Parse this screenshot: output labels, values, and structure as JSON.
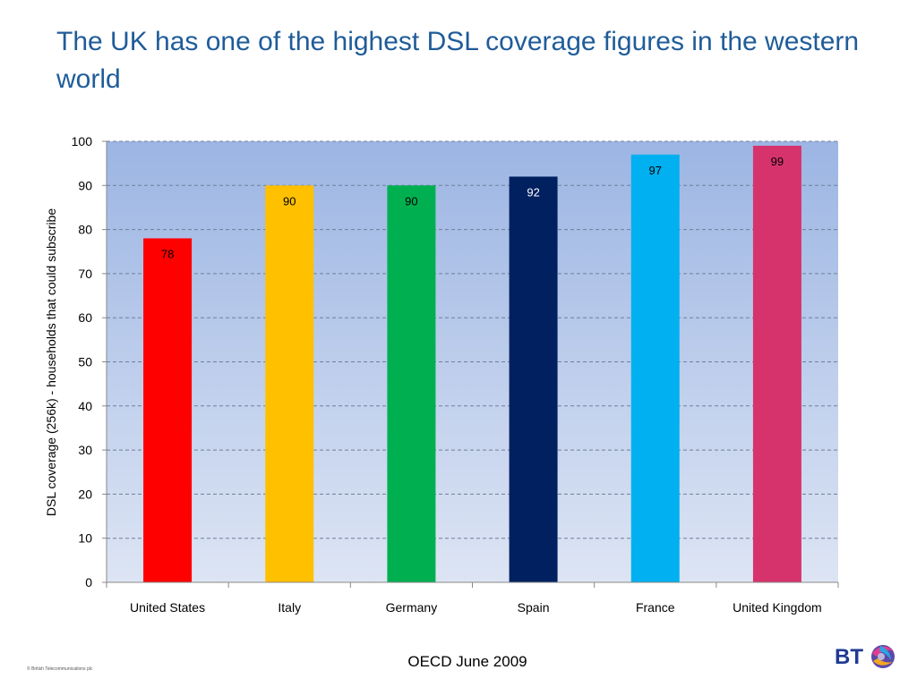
{
  "slide": {
    "title": "The UK has one of the highest DSL coverage figures in the western world",
    "source": "OECD June 2009",
    "copyright": "© British Telecommunications plc",
    "logo_text": "BT"
  },
  "colors": {
    "title": "#1f5c99",
    "plot_top": "#9cb5e3",
    "plot_bottom": "#dde5f4",
    "grid": "#6f7f99"
  },
  "chart_data": {
    "type": "bar",
    "title": "",
    "xlabel": "",
    "ylabel": "DSL coverage (256k) - households that could subscribe",
    "ylim": [
      0,
      100
    ],
    "yticks": [
      0,
      10,
      20,
      30,
      40,
      50,
      60,
      70,
      80,
      90,
      100
    ],
    "grid": true,
    "categories": [
      "United States",
      "Italy",
      "Germany",
      "Spain",
      "France",
      "United Kingdom"
    ],
    "values": [
      78,
      90,
      90,
      92,
      97,
      99
    ],
    "bar_colors": [
      "#ff0000",
      "#ffc000",
      "#00b050",
      "#002060",
      "#00b0f0",
      "#d6336c"
    ],
    "label_colors": [
      "#000000",
      "#000000",
      "#000000",
      "#ffffff",
      "#000000",
      "#000000"
    ]
  }
}
